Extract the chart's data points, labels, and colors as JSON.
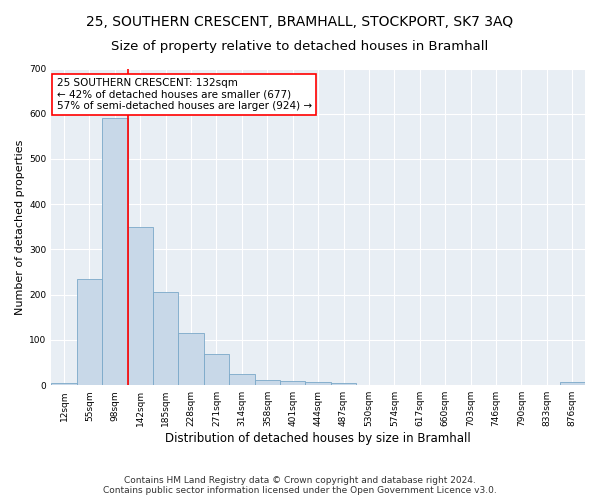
{
  "title": "25, SOUTHERN CRESCENT, BRAMHALL, STOCKPORT, SK7 3AQ",
  "subtitle": "Size of property relative to detached houses in Bramhall",
  "xlabel": "Distribution of detached houses by size in Bramhall",
  "ylabel": "Number of detached properties",
  "footnote": "Contains HM Land Registry data © Crown copyright and database right 2024.\nContains public sector information licensed under the Open Government Licence v3.0.",
  "categories": [
    "12sqm",
    "55sqm",
    "98sqm",
    "142sqm",
    "185sqm",
    "228sqm",
    "271sqm",
    "314sqm",
    "358sqm",
    "401sqm",
    "444sqm",
    "487sqm",
    "530sqm",
    "574sqm",
    "617sqm",
    "660sqm",
    "703sqm",
    "746sqm",
    "790sqm",
    "833sqm",
    "876sqm"
  ],
  "bar_heights": [
    5,
    235,
    590,
    350,
    205,
    115,
    70,
    25,
    12,
    9,
    7,
    5,
    0,
    0,
    0,
    0,
    0,
    0,
    0,
    0,
    8
  ],
  "bar_color": "#c8d8e8",
  "bar_edge_color": "#7aa8c8",
  "vline_x": 3,
  "annotation_text": "25 SOUTHERN CRESCENT: 132sqm\n← 42% of detached houses are smaller (677)\n57% of semi-detached houses are larger (924) →",
  "annotation_box_color": "white",
  "annotation_box_edge_color": "red",
  "vline_color": "red",
  "ylim": [
    0,
    700
  ],
  "yticks": [
    0,
    100,
    200,
    300,
    400,
    500,
    600,
    700
  ],
  "background_color": "#e8eef4",
  "title_fontsize": 10,
  "subtitle_fontsize": 9.5,
  "xlabel_fontsize": 8.5,
  "ylabel_fontsize": 8,
  "tick_fontsize": 6.5,
  "annotation_fontsize": 7.5,
  "footnote_fontsize": 6.5
}
